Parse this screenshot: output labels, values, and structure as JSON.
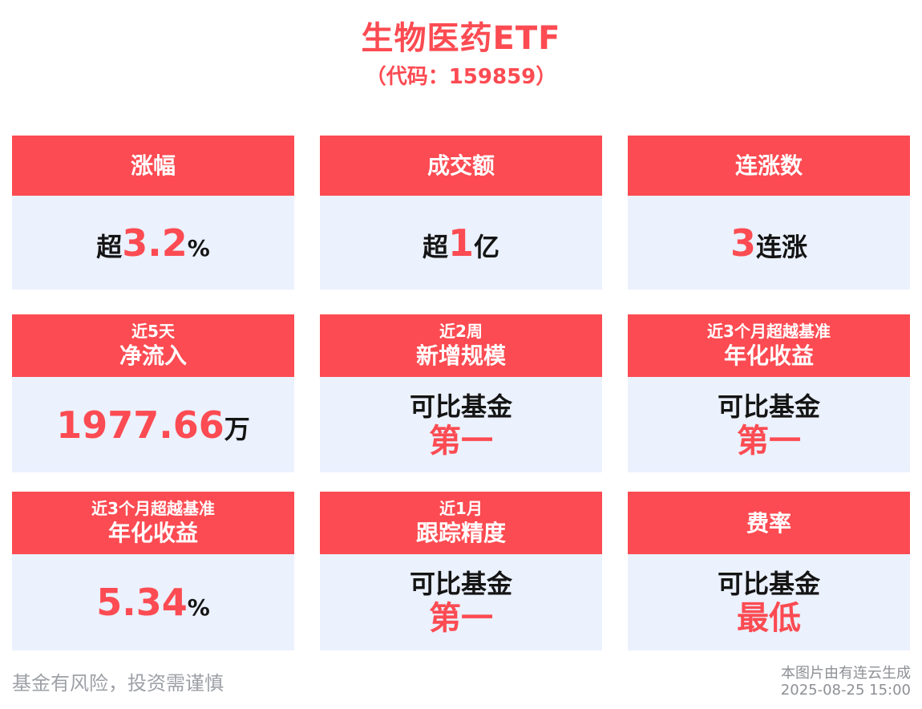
{
  "title": "生物医药ETF",
  "subtitle": "（代码：159859）",
  "colors": {
    "accent_red": "#FC4B52",
    "card_body_bg": "#EBF1FD",
    "dark_text": "#141414",
    "footer_gray": "#9DA0A6"
  },
  "cards": [
    {
      "id": "change-pct",
      "header_main": "涨幅",
      "parts": [
        "超",
        "3.2",
        "%"
      ]
    },
    {
      "id": "turnover",
      "header_main": "成交额",
      "parts": [
        "超",
        "1",
        "亿"
      ]
    },
    {
      "id": "consecutive-gains",
      "header_main": "连涨数",
      "parts": [
        "3",
        "连涨"
      ]
    },
    {
      "id": "net-inflow",
      "header_small": "近5天",
      "header_main": "净流入",
      "parts": [
        "1977.66",
        "万"
      ]
    },
    {
      "id": "new-scale",
      "header_small": "近2周",
      "header_main": "新增规模",
      "line1": "可比基金",
      "line2": "第一"
    },
    {
      "id": "benchmark-annualized-return",
      "header_small": "近3个月超越基准",
      "header_main": "年化收益",
      "line1": "可比基金",
      "line2": "第一"
    },
    {
      "id": "annualized-return",
      "header_small": "近3个月超越基准",
      "header_main": "年化收益",
      "parts": [
        "5.34",
        "%"
      ]
    },
    {
      "id": "tracking-precision",
      "header_small": "近1月",
      "header_main": "跟踪精度",
      "line1": "可比基金",
      "line2": "第一"
    },
    {
      "id": "fee-rate",
      "header_main": "费率",
      "line1": "可比基金",
      "line2": "最低"
    }
  ],
  "footer": {
    "disclaimer": "基金有风险，投资需谨慎",
    "source_line1": "本图片由有连云生成",
    "source_line2": "2025-08-25 15:00"
  }
}
